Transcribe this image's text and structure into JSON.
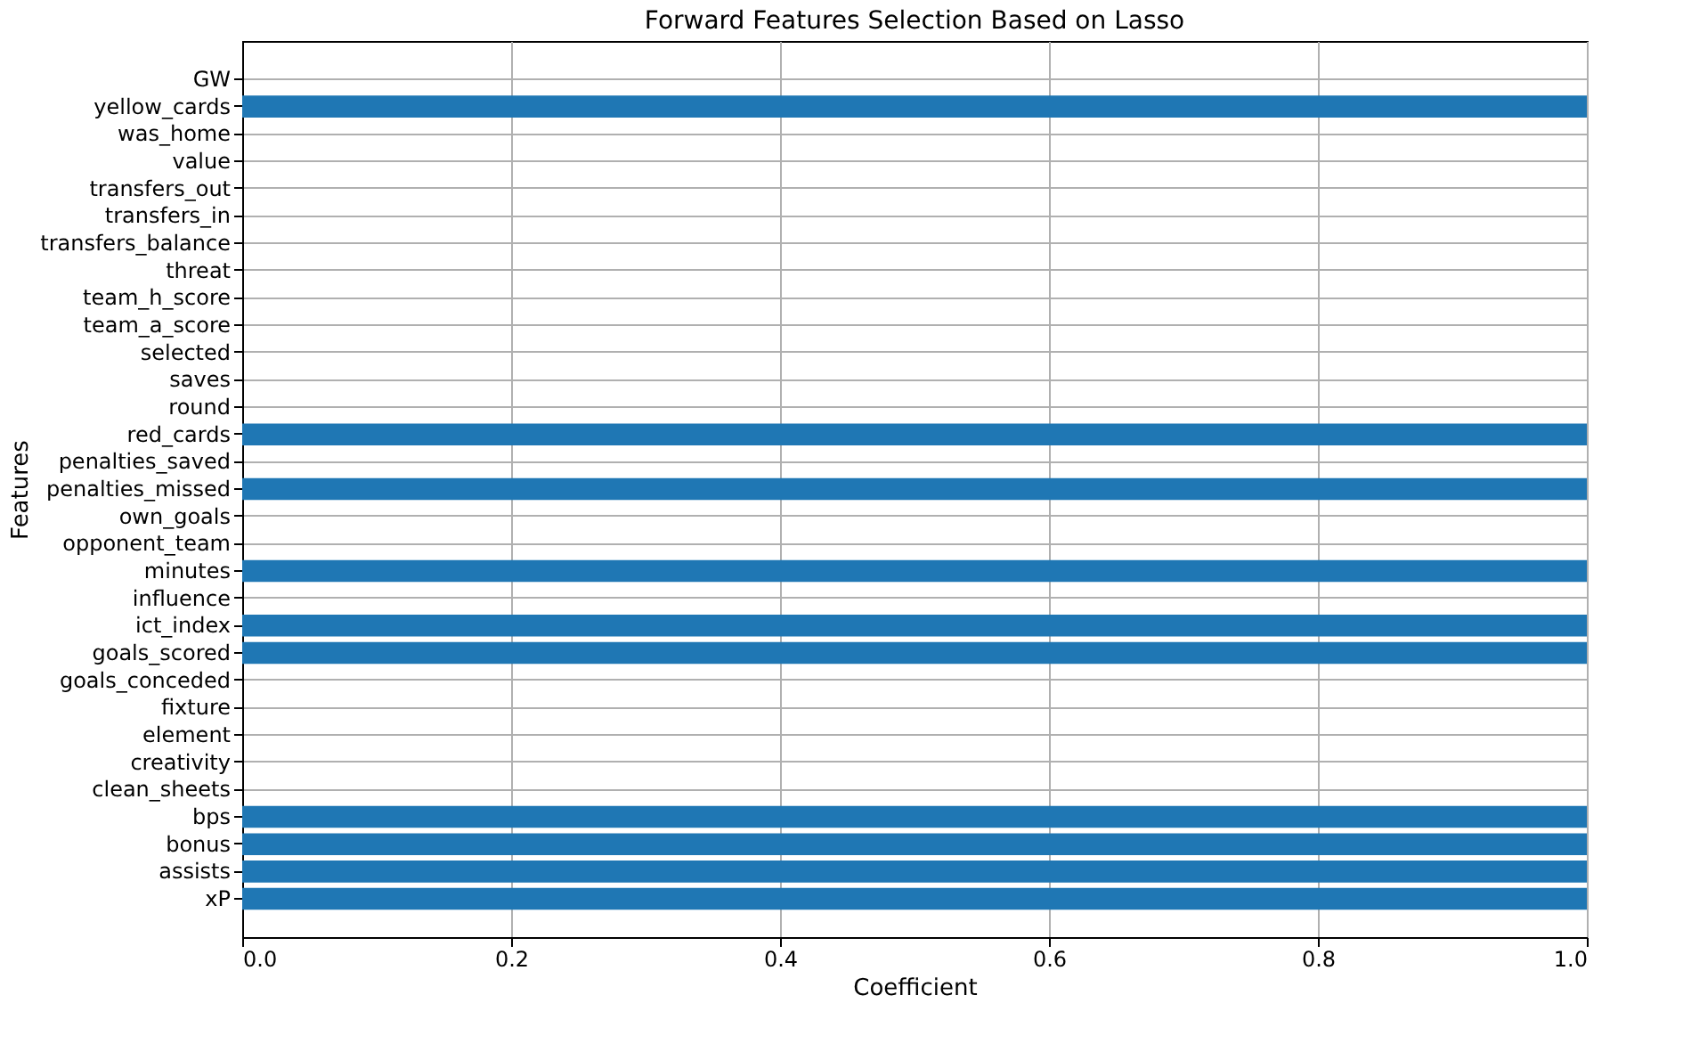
{
  "chart_data": {
    "type": "bar",
    "orientation": "horizontal",
    "title": "Forward Features Selection Based on Lasso",
    "xlabel": "Coefficient",
    "ylabel": "Features",
    "categories": [
      "GW",
      "yellow_cards",
      "was_home",
      "value",
      "transfers_out",
      "transfers_in",
      "transfers_balance",
      "threat",
      "team_h_score",
      "team_a_score",
      "selected",
      "saves",
      "round",
      "red_cards",
      "penalties_saved",
      "penalties_missed",
      "own_goals",
      "opponent_team",
      "minutes",
      "influence",
      "ict_index",
      "goals_scored",
      "goals_conceded",
      "fixture",
      "element",
      "creativity",
      "clean_sheets",
      "bps",
      "bonus",
      "assists",
      "xP"
    ],
    "values": [
      0,
      1,
      0,
      0,
      0,
      0,
      0,
      0,
      0,
      0,
      0,
      0,
      0,
      1,
      0,
      1,
      0,
      0,
      1,
      0,
      1,
      1,
      0,
      0,
      0,
      0,
      0,
      1,
      1,
      1,
      1
    ],
    "color": "#1f77b4",
    "xlim": [
      0,
      1
    ],
    "xticks": [
      {
        "value": 0,
        "label": "0.0"
      },
      {
        "value": 0.2,
        "label": "0.2"
      },
      {
        "value": 0.4,
        "label": "0.4"
      },
      {
        "value": 0.6,
        "label": "0.6"
      },
      {
        "value": 0.8,
        "label": "0.8"
      },
      {
        "value": 1,
        "label": "1.0"
      }
    ],
    "grid": true
  }
}
